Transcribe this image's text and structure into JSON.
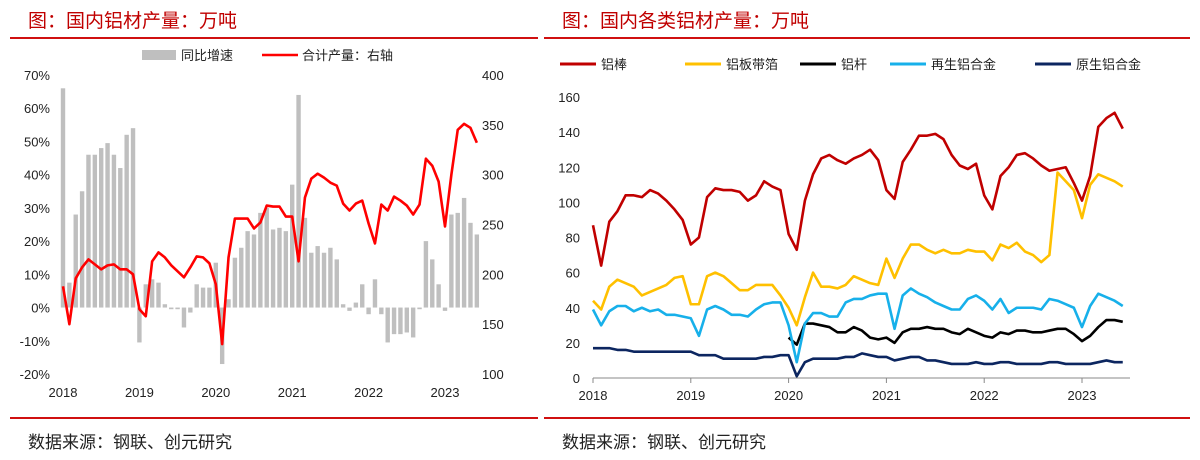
{
  "panels": {
    "left": {
      "title": "图：国内铝材产量：万吨",
      "source": "数据来源：钢联、创元研究"
    },
    "right": {
      "title": "图：国内各类铝材产量：万吨",
      "source": "数据来源：钢联、创元研究"
    }
  },
  "chart_data": [
    {
      "type": "bar+line",
      "x_start": "2018-01",
      "frequency": "monthly",
      "xticks": [
        "2018",
        "2019",
        "2020",
        "2021",
        "2022",
        "2023"
      ],
      "y_left": {
        "ticks": [
          "-20%",
          "-10%",
          "0%",
          "10%",
          "20%",
          "30%",
          "40%",
          "50%",
          "60%",
          "70%"
        ],
        "range": [
          -20,
          70
        ]
      },
      "y_right": {
        "ticks": [
          "100",
          "150",
          "200",
          "250",
          "300",
          "350",
          "400"
        ],
        "range": [
          100,
          400
        ]
      },
      "series": [
        {
          "name": "同比增速",
          "kind": "bar",
          "axis": "left",
          "color": "#bfbfbf",
          "values": [
            66,
            7.5,
            28,
            35,
            46,
            46,
            48,
            49.5,
            46,
            42,
            52,
            54,
            -10.5,
            7,
            8.5,
            7.5,
            1,
            -0.5,
            -0.5,
            -6,
            -1.5,
            7,
            6,
            6,
            13.5,
            -17,
            2.5,
            15,
            18,
            23,
            22,
            28.5,
            30,
            23.5,
            24,
            23,
            37,
            64,
            27,
            16.5,
            18.5,
            16.5,
            18,
            14.5,
            1,
            -1,
            1.5,
            7,
            -2,
            8.5,
            -2,
            -10.5,
            -8,
            -8,
            -7.5,
            -9,
            -0.5,
            20,
            14.5,
            7,
            -1,
            28,
            28.5,
            33,
            25.5,
            22
          ]
        },
        {
          "name": "合计产量：右轴",
          "kind": "line",
          "axis": "right",
          "color": "#ff0000",
          "values": [
            188,
            150,
            196,
            207,
            215,
            210,
            205,
            209,
            210,
            205,
            205,
            200,
            165,
            158,
            213,
            222,
            217,
            209,
            203,
            197,
            207,
            218,
            217,
            211,
            190,
            130,
            217,
            256,
            256,
            256,
            246,
            252,
            269,
            268,
            268,
            258,
            258,
            213,
            277,
            296,
            301,
            297,
            292,
            289,
            271,
            264,
            271,
            274,
            251,
            231,
            270,
            264,
            278,
            274,
            269,
            260,
            270,
            316,
            309,
            293,
            248,
            300,
            345,
            351,
            347,
            332
          ]
        }
      ],
      "legend": "top-center",
      "grid": false
    },
    {
      "type": "line",
      "x_start": "2018-01",
      "frequency": "monthly",
      "xticks": [
        "2018",
        "2019",
        "2020",
        "2021",
        "2022",
        "2023"
      ],
      "yticks": [
        "0",
        "20",
        "40",
        "60",
        "80",
        "100",
        "120",
        "140",
        "160"
      ],
      "ylim": [
        0,
        160
      ],
      "series": [
        {
          "name": "铝棒",
          "color": "#c00000",
          "start": 0,
          "values": [
            87,
            64,
            89,
            95,
            104,
            104,
            103,
            107,
            105,
            101,
            96,
            90,
            76,
            80,
            103,
            108,
            107,
            107,
            106,
            101,
            104,
            112,
            109,
            107,
            82,
            73,
            101,
            116,
            125,
            127,
            124,
            122,
            125,
            127,
            130,
            124,
            107,
            102,
            123,
            130,
            138,
            138,
            139,
            136,
            127,
            121,
            119,
            122,
            104,
            96,
            115,
            120,
            127,
            128,
            125,
            121,
            118,
            119,
            120,
            111,
            101,
            115,
            143,
            148,
            151,
            142
          ]
        },
        {
          "name": "铝板带箔",
          "color": "#ffc000",
          "start": 0,
          "values": [
            44,
            39,
            52,
            56,
            54,
            52,
            47,
            49,
            51,
            53,
            57,
            58,
            42,
            42,
            58,
            60,
            58,
            54,
            50,
            50,
            53,
            53,
            53,
            47,
            40,
            30,
            46,
            60,
            52,
            52,
            51,
            53,
            58,
            56,
            54,
            53,
            68,
            57,
            68,
            76,
            76,
            73,
            71,
            73,
            71,
            71,
            73,
            72,
            72,
            67,
            76,
            74,
            77,
            72,
            70,
            66,
            70,
            117,
            112,
            107,
            91,
            110,
            116,
            114,
            112,
            109
          ]
        },
        {
          "name": "铝杆",
          "color": "#000000",
          "start": 24,
          "values": [
            23,
            19,
            31,
            31,
            30,
            29,
            26,
            26,
            29,
            27,
            23,
            22,
            23,
            20,
            26,
            28,
            28,
            29,
            28,
            28,
            26,
            25,
            28,
            26,
            24,
            23,
            26,
            25,
            27,
            27,
            26,
            26,
            27,
            28,
            28,
            25,
            21,
            24,
            29,
            33,
            33,
            32
          ]
        },
        {
          "name": "再生铝合金",
          "color": "#17b0ea",
          "start": 0,
          "values": [
            39,
            30,
            38,
            41,
            41,
            38,
            40,
            38,
            39,
            36,
            36,
            35,
            34,
            24,
            39,
            41,
            39,
            36,
            36,
            35,
            39,
            42,
            43,
            43,
            30,
            9,
            31,
            37,
            37,
            35,
            35,
            43,
            45,
            45,
            47,
            48,
            48,
            28,
            47,
            51,
            48,
            46,
            43,
            41,
            39,
            39,
            45,
            47,
            44,
            39,
            45,
            37,
            40,
            40,
            40,
            39,
            45,
            44,
            42,
            40,
            29,
            41,
            48,
            46,
            44,
            41
          ]
        },
        {
          "name": "原生铝合金",
          "color": "#0c2660",
          "start": 0,
          "values": [
            17,
            17,
            17,
            16,
            16,
            15,
            15,
            15,
            15,
            15,
            15,
            15,
            15,
            13,
            13,
            13,
            11,
            11,
            11,
            11,
            11,
            12,
            12,
            13,
            13,
            1,
            9,
            11,
            11,
            11,
            11,
            12,
            12,
            14,
            13,
            12,
            12,
            10,
            11,
            12,
            12,
            10,
            10,
            9,
            8,
            8,
            8,
            9,
            8,
            8,
            9,
            9,
            8,
            8,
            8,
            8,
            9,
            9,
            8,
            8,
            8,
            8,
            9,
            10,
            9,
            9
          ]
        }
      ],
      "legend": "top",
      "grid": false
    }
  ]
}
